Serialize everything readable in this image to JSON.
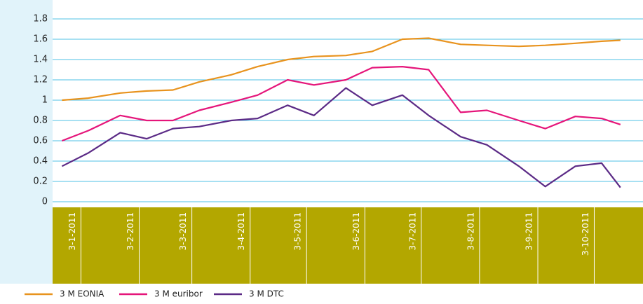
{
  "chart_data": {
    "type": "line",
    "x": [
      "3-1-2011",
      "17-1-2011",
      "3-2-2011",
      "17-2-2011",
      "3-3-2011",
      "17-3-2011",
      "3-4-2011",
      "17-4-2011",
      "3-5-2011",
      "17-5-2011",
      "3-6-2011",
      "17-6-2011",
      "3-7-2011",
      "17-7-2011",
      "3-8-2011",
      "17-8-2011",
      "3-9-2011",
      "17-9-2011",
      "3-10-2011",
      "17-10-2011",
      "27-10-2011"
    ],
    "series": [
      {
        "name": "3 M EONIA",
        "color": "#e8931e",
        "values": [
          1.0,
          1.02,
          1.07,
          1.09,
          1.1,
          1.18,
          1.25,
          1.33,
          1.4,
          1.43,
          1.44,
          1.48,
          1.6,
          1.61,
          1.55,
          1.54,
          1.53,
          1.54,
          1.56,
          1.58,
          1.59
        ]
      },
      {
        "name": "3 M euribor",
        "color": "#e5157a",
        "values": [
          0.6,
          0.7,
          0.85,
          0.8,
          0.8,
          0.9,
          0.98,
          1.05,
          1.2,
          1.15,
          1.2,
          1.32,
          1.33,
          1.3,
          0.88,
          0.9,
          0.8,
          0.72,
          0.84,
          0.82,
          0.76
        ]
      },
      {
        "name": "3 M DTC",
        "color": "#5b2a86",
        "values": [
          0.35,
          0.48,
          0.68,
          0.62,
          0.72,
          0.74,
          0.8,
          0.82,
          0.95,
          0.85,
          1.12,
          0.95,
          1.05,
          0.85,
          0.64,
          0.56,
          0.35,
          0.15,
          0.35,
          0.38,
          0.14
        ]
      }
    ],
    "xlim": [
      "29-12-2010",
      "8-11-2011"
    ],
    "xticks": [
      "3-1-2011",
      "3-2-2011",
      "3-3-2011",
      "3-4-2011",
      "3-5-2011",
      "3-6-2011",
      "3-7-2011",
      "3-8-2011",
      "3-9-2011",
      "3-10-2011"
    ],
    "ylim": [
      0,
      1.8
    ],
    "yticks": [
      0,
      0.2,
      0.4,
      0.6,
      0.8,
      1,
      1.2,
      1.4,
      1.6,
      1.8
    ],
    "grid": true,
    "legend": "bottom"
  }
}
